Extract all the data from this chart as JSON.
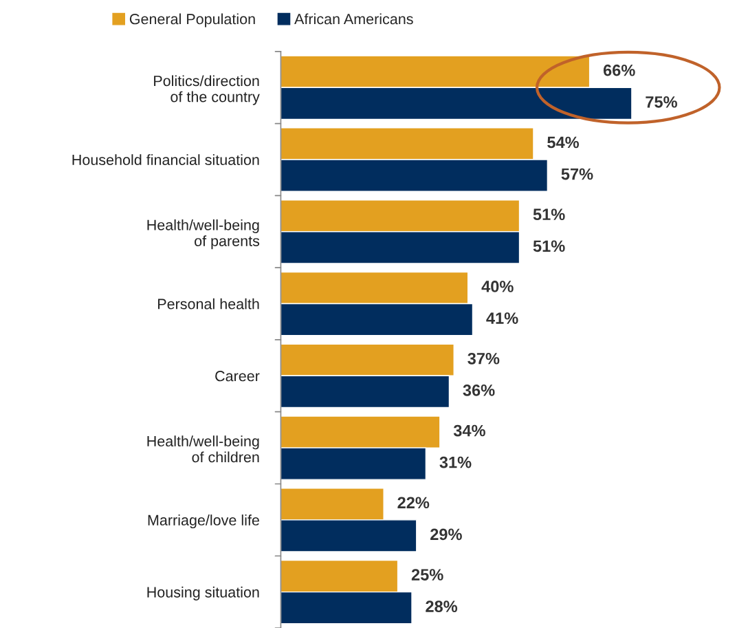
{
  "chart_data": {
    "type": "bar",
    "orientation": "horizontal",
    "legend": "top left",
    "tick_labels": "y",
    "categories": [
      "Politics/direction\nof the country",
      "Household financial situation",
      "Health/well-being\nof parents",
      "Personal health",
      "Career",
      "Health/well-being\nof children",
      "Marriage/love life",
      "Housing situation"
    ],
    "series": [
      {
        "name": "General Population",
        "color": "#e3a020",
        "values": [
          66,
          54,
          51,
          40,
          37,
          34,
          22,
          25
        ],
        "value_labels": [
          "66%",
          "54%",
          "51%",
          "40%",
          "37%",
          "34%",
          "22%",
          "25%"
        ]
      },
      {
        "name": "African Americans",
        "color": "#012d5e",
        "values": [
          75,
          57,
          51,
          41,
          36,
          31,
          29,
          28
        ],
        "value_labels": [
          "75%",
          "57%",
          "51%",
          "41%",
          "36%",
          "31%",
          "29%",
          "28%"
        ]
      }
    ]
  }
}
